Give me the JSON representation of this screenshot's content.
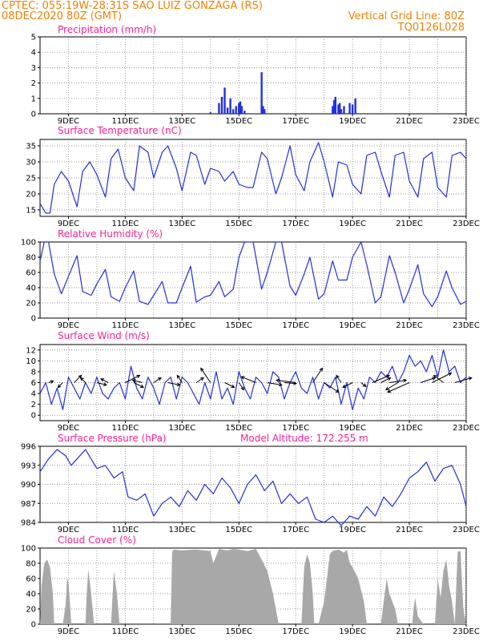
{
  "header": {
    "line1_left": "CPTEC:   055:19W-28:31S  SAO LUIZ GONZAGA (RS)",
    "line2_left": "08DEC2020 80Z (GMT)",
    "line2_right": "Vertical Grid Line: 80Z",
    "line3_right": "TQ0126L028"
  },
  "colors": {
    "series": "#2030e0",
    "cloud": "#a8a8a8",
    "title": "#ff2090",
    "header": "#f08000"
  },
  "chart_data": [
    {
      "type": "bar",
      "title": "Precipitation (mm/h)",
      "ylim": [
        0,
        5
      ],
      "yticks": [
        "0",
        "1",
        "2",
        "3",
        "4",
        "5"
      ],
      "xticks": [
        "9DEC",
        "11DEC",
        "13DEC",
        "15DEC",
        "17DEC",
        "19DEC",
        "21DEC",
        "23DEC"
      ],
      "xrange_days": [
        8.0,
        23.0
      ],
      "x": [
        14.0,
        14.3,
        14.4,
        14.5,
        14.6,
        14.7,
        14.8,
        14.9,
        15.0,
        15.05,
        15.1,
        15.2,
        15.8,
        15.85,
        15.9,
        18.3,
        18.35,
        18.4,
        18.5,
        18.55,
        18.6,
        18.7,
        18.9,
        19.0,
        19.1
      ],
      "values": [
        0.1,
        0.7,
        1.1,
        1.7,
        0.4,
        1.0,
        0.3,
        0.5,
        0.7,
        0.8,
        0.5,
        0.2,
        2.7,
        0.5,
        0.3,
        0.5,
        0.9,
        1.1,
        0.6,
        0.7,
        0.3,
        0.5,
        0.7,
        0.6,
        1.0
      ]
    },
    {
      "type": "line",
      "title": "Surface Temperature (nC)",
      "ylim": [
        13,
        37
      ],
      "yticks": [
        "15",
        "20",
        "25",
        "30",
        "35"
      ],
      "xticks": [
        "9DEC",
        "11DEC",
        "13DEC",
        "15DEC",
        "17DEC",
        "19DEC",
        "21DEC",
        "23DEC"
      ],
      "xrange_days": [
        8.0,
        23.0
      ],
      "x": [
        8.0,
        8.2,
        8.35,
        8.5,
        8.75,
        9.0,
        9.3,
        9.5,
        9.75,
        10.0,
        10.3,
        10.5,
        10.75,
        11.0,
        11.3,
        11.5,
        11.8,
        12.0,
        12.3,
        12.5,
        12.8,
        13.0,
        13.3,
        13.5,
        13.8,
        14.0,
        14.3,
        14.5,
        14.8,
        15.0,
        15.3,
        15.5,
        15.8,
        16.0,
        16.3,
        16.5,
        16.8,
        17.0,
        17.3,
        17.5,
        17.8,
        18.0,
        18.3,
        18.5,
        18.8,
        19.0,
        19.3,
        19.5,
        19.8,
        20.0,
        20.3,
        20.5,
        20.8,
        21.0,
        21.3,
        21.5,
        21.8,
        22.0,
        22.3,
        22.5,
        22.8,
        23.0
      ],
      "values": [
        17,
        14,
        14,
        23,
        27,
        24,
        16,
        27,
        30,
        26,
        19,
        31,
        34,
        25,
        21,
        35,
        33,
        25,
        33,
        35,
        28,
        21,
        33,
        32,
        23,
        28,
        27,
        24,
        27,
        23,
        22,
        22,
        33,
        31,
        20,
        25,
        35,
        26,
        21,
        30,
        36,
        30,
        19,
        30,
        29,
        23,
        20,
        32,
        33,
        27,
        19,
        32,
        33,
        24,
        19,
        31,
        33,
        22,
        19,
        32,
        33,
        31
      ]
    },
    {
      "type": "line",
      "title": "Relative Humidity (%)",
      "ylim": [
        0,
        100
      ],
      "yticks": [
        "0",
        "20",
        "40",
        "60",
        "80",
        "100"
      ],
      "xticks": [
        "9DEC",
        "11DEC",
        "13DEC",
        "15DEC",
        "17DEC",
        "19DEC",
        "21DEC",
        "23DEC"
      ],
      "xrange_days": [
        8.0,
        23.0
      ],
      "x": [
        8.0,
        8.15,
        8.3,
        8.5,
        8.75,
        9.0,
        9.3,
        9.5,
        9.8,
        10.0,
        10.3,
        10.5,
        10.8,
        11.0,
        11.3,
        11.5,
        11.8,
        12.0,
        12.3,
        12.5,
        12.8,
        13.0,
        13.3,
        13.5,
        13.8,
        14.0,
        14.3,
        14.5,
        14.8,
        15.0,
        15.2,
        15.5,
        15.8,
        16.0,
        16.3,
        16.5,
        16.8,
        17.0,
        17.3,
        17.5,
        17.8,
        18.0,
        18.3,
        18.5,
        18.8,
        19.0,
        19.3,
        19.5,
        19.8,
        20.0,
        20.3,
        20.5,
        20.8,
        21.0,
        21.3,
        21.5,
        21.8,
        22.0,
        22.3,
        22.5,
        22.8,
        23.0
      ],
      "values": [
        75,
        100,
        100,
        58,
        32,
        55,
        82,
        35,
        30,
        45,
        64,
        28,
        22,
        40,
        62,
        22,
        18,
        30,
        48,
        20,
        20,
        40,
        68,
        21,
        28,
        30,
        48,
        28,
        38,
        80,
        100,
        100,
        38,
        60,
        100,
        100,
        42,
        30,
        58,
        80,
        25,
        32,
        75,
        50,
        50,
        80,
        100,
        70,
        20,
        28,
        82,
        60,
        20,
        38,
        70,
        32,
        15,
        28,
        62,
        40,
        18,
        22
      ]
    },
    {
      "type": "line",
      "title": "Surface Wind (m/s)",
      "ylim": [
        -1,
        13
      ],
      "yticks": [
        "0",
        "2",
        "4",
        "6",
        "8",
        "10",
        "12"
      ],
      "xticks": [
        "9DEC",
        "11DEC",
        "13DEC",
        "15DEC",
        "17DEC",
        "19DEC",
        "21DEC",
        "23DEC"
      ],
      "xrange_days": [
        8.0,
        23.0
      ],
      "x": [
        8.0,
        8.2,
        8.4,
        8.6,
        8.8,
        9.0,
        9.2,
        9.4,
        9.6,
        9.8,
        10.0,
        10.2,
        10.4,
        10.6,
        10.8,
        11.0,
        11.2,
        11.4,
        11.6,
        11.8,
        12.0,
        12.2,
        12.4,
        12.6,
        12.8,
        13.0,
        13.2,
        13.4,
        13.6,
        13.8,
        14.0,
        14.2,
        14.4,
        14.6,
        14.8,
        15.0,
        15.2,
        15.4,
        15.6,
        15.8,
        16.0,
        16.2,
        16.4,
        16.6,
        16.8,
        17.0,
        17.2,
        17.4,
        17.6,
        17.8,
        18.0,
        18.2,
        18.4,
        18.6,
        18.8,
        19.0,
        19.2,
        19.4,
        19.6,
        19.8,
        20.0,
        20.2,
        20.4,
        20.6,
        20.8,
        21.0,
        21.2,
        21.4,
        21.6,
        21.8,
        22.0,
        22.2,
        22.4,
        22.6,
        22.8,
        23.0
      ],
      "values": [
        4,
        6,
        2,
        5,
        1,
        7,
        5,
        3,
        6,
        4,
        7,
        4,
        3,
        5,
        6,
        3,
        9,
        5,
        3,
        7,
        5,
        2,
        6,
        7,
        3,
        7,
        6,
        4,
        2,
        6,
        3,
        8,
        3,
        5,
        2,
        8,
        5,
        3,
        7,
        6,
        4,
        8,
        7,
        3,
        6,
        8,
        5,
        4,
        7,
        3,
        6,
        5,
        7,
        2,
        6,
        1,
        5,
        3,
        7,
        6,
        8,
        7,
        9,
        6,
        8,
        11,
        9,
        10,
        8,
        11,
        7,
        12,
        8,
        9,
        6,
        7
      ]
    },
    {
      "type": "line",
      "title": "Surface Pressure (hPa)",
      "subtitle": "Model Altitude: 172.255 m",
      "ylim": [
        984,
        996
      ],
      "yticks": [
        "984",
        "987",
        "990",
        "993",
        "996"
      ],
      "xticks": [
        "9DEC",
        "11DEC",
        "13DEC",
        "15DEC",
        "17DEC",
        "19DEC",
        "21DEC",
        "23DEC"
      ],
      "xrange_days": [
        8.0,
        23.0
      ],
      "x": [
        8.0,
        8.3,
        8.6,
        8.9,
        9.1,
        9.3,
        9.6,
        9.8,
        10.0,
        10.3,
        10.6,
        10.9,
        11.1,
        11.4,
        11.7,
        12.0,
        12.3,
        12.6,
        12.9,
        13.2,
        13.5,
        13.8,
        14.1,
        14.4,
        14.7,
        15.0,
        15.3,
        15.6,
        15.9,
        16.2,
        16.5,
        16.8,
        17.1,
        17.4,
        17.7,
        18.0,
        18.3,
        18.6,
        18.9,
        19.2,
        19.5,
        19.8,
        20.1,
        20.4,
        20.7,
        21.0,
        21.3,
        21.6,
        21.9,
        22.2,
        22.5,
        22.8,
        23.0
      ],
      "values": [
        992,
        994,
        995.5,
        994.5,
        993,
        994,
        995.5,
        994,
        992.5,
        993,
        991,
        992,
        988,
        987.5,
        988.5,
        985,
        987,
        988,
        986.5,
        989,
        987.5,
        990,
        988.5,
        991,
        989.5,
        987,
        990,
        991.5,
        989,
        990.5,
        987,
        988.5,
        987,
        988,
        984.5,
        984,
        985,
        983.5,
        985,
        984.5,
        986.5,
        985,
        988,
        986.5,
        988.5,
        991,
        992,
        993.5,
        990.5,
        992.5,
        993,
        990,
        986.5
      ]
    },
    {
      "type": "area",
      "title": "Cloud Cover (%)",
      "ylim": [
        0,
        100
      ],
      "yticks": [
        "0",
        "20",
        "40",
        "60",
        "80",
        "100"
      ],
      "xticks": [
        "9DEC",
        "11DEC",
        "13DEC",
        "15DEC",
        "17DEC",
        "19DEC",
        "21DEC",
        "23DEC"
      ],
      "xrange_days": [
        8.0,
        23.0
      ],
      "x": [
        8.0,
        8.05,
        8.15,
        8.25,
        8.35,
        8.45,
        8.5,
        8.8,
        8.9,
        8.95,
        9.0,
        9.05,
        9.1,
        9.2,
        9.25,
        9.6,
        9.65,
        9.7,
        9.8,
        9.9,
        10.0,
        10.5,
        10.55,
        10.6,
        10.7,
        10.8,
        10.9,
        11.0,
        12.6,
        12.65,
        12.7,
        13.0,
        13.5,
        14.0,
        14.1,
        14.3,
        14.4,
        14.6,
        14.8,
        15.0,
        15.3,
        15.6,
        15.8,
        16.0,
        16.1,
        16.2,
        16.3,
        16.4,
        16.6,
        16.8,
        17.0,
        17.2,
        17.3,
        17.4,
        17.5,
        17.6,
        17.65,
        17.8,
        18.0,
        18.1,
        18.2,
        18.3,
        18.5,
        18.7,
        18.8,
        18.9,
        19.0,
        19.2,
        19.4,
        19.5,
        19.6,
        19.7,
        19.8,
        20.0,
        20.1,
        20.2,
        20.3,
        20.5,
        20.6,
        21.0,
        21.1,
        21.15,
        21.2,
        21.3,
        21.5,
        21.9,
        22.0,
        22.1,
        22.2,
        22.3,
        22.4,
        22.5,
        22.6,
        22.7,
        22.8,
        22.9,
        23.0
      ],
      "values": [
        0,
        50,
        80,
        85,
        75,
        40,
        0,
        0,
        25,
        60,
        55,
        30,
        0,
        0,
        0,
        0,
        45,
        72,
        40,
        0,
        0,
        0,
        35,
        70,
        42,
        0,
        0,
        0,
        0,
        95,
        98,
        97,
        98,
        96,
        80,
        99,
        98,
        97,
        99,
        98,
        96,
        99,
        85,
        70,
        55,
        40,
        20,
        0,
        0,
        0,
        0,
        0,
        75,
        92,
        80,
        40,
        0,
        0,
        30,
        60,
        92,
        96,
        98,
        94,
        98,
        80,
        75,
        60,
        30,
        0,
        0,
        0,
        0,
        0,
        30,
        60,
        40,
        20,
        0,
        0,
        0,
        20,
        35,
        10,
        0,
        0,
        60,
        35,
        70,
        85,
        50,
        30,
        0,
        95,
        96,
        20,
        0
      ]
    }
  ],
  "wind_arrows": {
    "x": [
      8.3,
      8.8,
      9.2,
      9.6,
      10.0,
      10.4,
      11.0,
      11.3,
      11.6,
      12.0,
      12.5,
      13.0,
      13.5,
      14.0,
      14.5,
      15.0,
      15.6,
      16.0,
      16.6,
      17.0,
      17.6,
      18.0,
      18.6,
      19.0,
      19.3,
      19.7,
      20.0,
      20.3,
      20.6,
      21.0,
      21.4,
      21.8,
      22.2,
      22.6
    ],
    "u": [
      1,
      -1,
      1.5,
      -1,
      2,
      -1.5,
      3,
      2,
      -2,
      1.5,
      2.5,
      -1,
      1.5,
      -2,
      2,
      1,
      -3,
      3,
      2.5,
      -4,
      2,
      3,
      -1,
      -2,
      1,
      3.5,
      2,
      3.5,
      -2.5,
      -4.5,
      3,
      4,
      -2,
      3.5
    ],
    "v": [
      0.3,
      -1,
      1.5,
      1,
      -0.5,
      0.8,
      1.5,
      -1,
      0.5,
      1,
      -0.5,
      1.5,
      1,
      3,
      -1,
      -1.5,
      1.2,
      -0.5,
      -0.2,
      0.5,
      3,
      -2,
      1.5,
      -1,
      -0.8,
      1.5,
      1,
      0.5,
      -1.5,
      -2,
      1,
      2,
      1.5,
      1
    ]
  }
}
